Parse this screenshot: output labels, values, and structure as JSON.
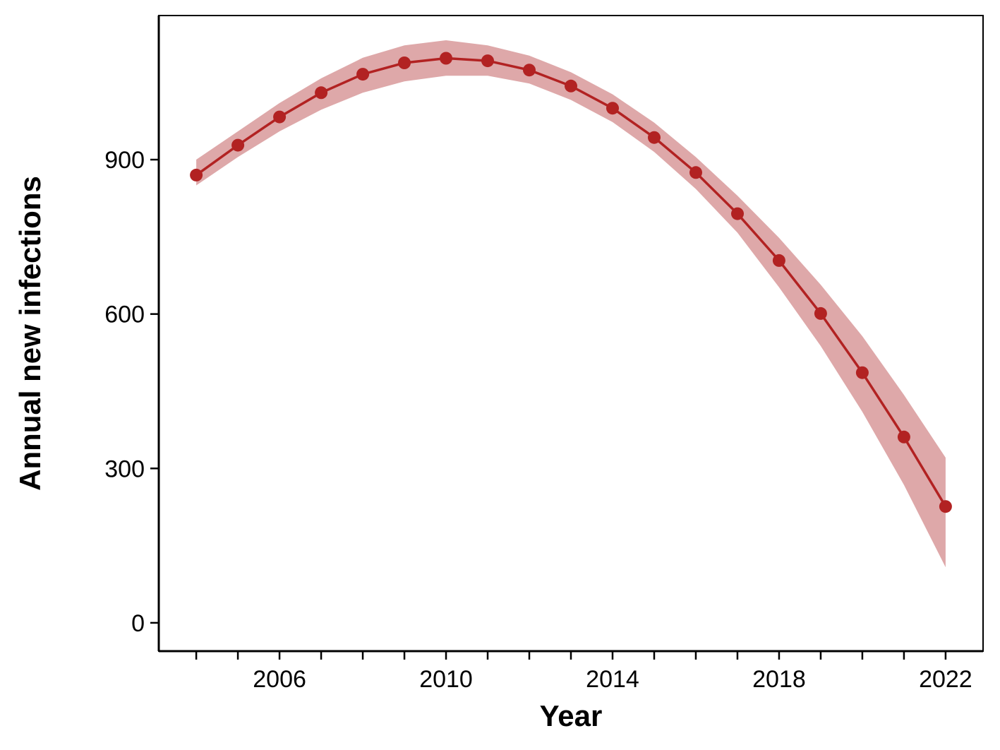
{
  "chart_data": {
    "type": "line",
    "title": "",
    "xlabel": "Year",
    "ylabel": "Annual new infections",
    "xlim": [
      2003.1,
      2022.9
    ],
    "ylim": [
      -55,
      1180
    ],
    "x_minor_ticks": [
      2004,
      2005,
      2006,
      2007,
      2008,
      2009,
      2010,
      2011,
      2012,
      2013,
      2014,
      2015,
      2016,
      2017,
      2018,
      2019,
      2020,
      2021,
      2022
    ],
    "x_tick_labels": [
      "2006",
      "2010",
      "2014",
      "2018",
      "2022"
    ],
    "y_tick_labels": [
      "0",
      "300",
      "600",
      "900"
    ],
    "grid": false,
    "legend": "none",
    "colors": {
      "line": "#b22222",
      "band": "#dea8a9",
      "axis": "#000000"
    },
    "series": [
      {
        "x": [
          2004,
          2005,
          2006,
          2007,
          2008,
          2009,
          2010,
          2011,
          2012,
          2013,
          2014,
          2015,
          2016,
          2017,
          2018,
          2019,
          2020,
          2021,
          2022
        ],
        "values": [
          870,
          928,
          983,
          1030,
          1066,
          1088,
          1097,
          1092,
          1074,
          1043,
          1000,
          943,
          875,
          795,
          704,
          601,
          486,
          361,
          226
        ],
        "lower": [
          850,
          905,
          955,
          997,
          1030,
          1052,
          1063,
          1063,
          1048,
          1016,
          973,
          915,
          843,
          758,
          652,
          538,
          410,
          268,
          108
        ],
        "upper": [
          900,
          955,
          1010,
          1058,
          1098,
          1122,
          1132,
          1122,
          1102,
          1070,
          1027,
          972,
          905,
          830,
          748,
          657,
          557,
          443,
          321
        ]
      }
    ]
  }
}
